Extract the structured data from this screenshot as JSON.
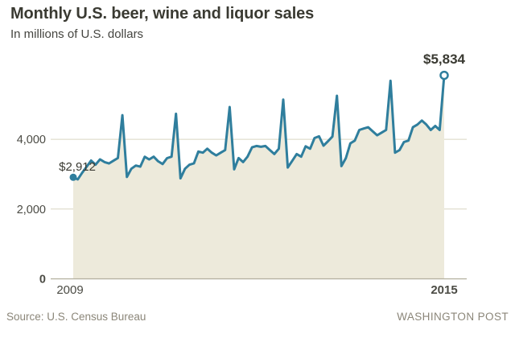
{
  "header": {
    "title": "Monthly U.S. beer, wine and liquor sales",
    "subtitle": "In millions of U.S. dollars"
  },
  "footer": {
    "source": "Source: U.S. Census Bureau",
    "brand": "WASHINGTON POST"
  },
  "colors": {
    "accent_line": "#2f7e9d",
    "area_fill": "#edeadb",
    "title_text": "#3a3a32",
    "subtitle_text": "#454540",
    "body_text": "#4b4b44",
    "grid_line": "#d9d5c2",
    "axis_line": "#b2ae9d",
    "muted_text": "#8b8679",
    "background": "#ffffff"
  },
  "chart_data": {
    "type": "area",
    "title": "Monthly U.S. beer, wine and liquor sales",
    "ylabel": "In millions of U.S. dollars",
    "x_range": [
      "2009-01",
      "2015-12"
    ],
    "x_tick_labels": [
      "2009",
      "2015"
    ],
    "y_ticks": [
      0,
      2000,
      4000
    ],
    "y_tick_labels": [
      "0",
      "2,000",
      "4,000"
    ],
    "ylim": [
      0,
      6000
    ],
    "grid": "horizontal",
    "legend": "none",
    "annotations": [
      {
        "label": "$2,912",
        "point": "first",
        "value": 2912,
        "marker": "filled-dot"
      },
      {
        "label": "$5,834",
        "point": "last",
        "value": 5834,
        "marker": "open-circle"
      }
    ],
    "series": [
      {
        "name": "Monthly sales",
        "values": [
          2912,
          2852,
          3040,
          3216,
          3392,
          3274,
          3426,
          3347,
          3308,
          3386,
          3462,
          4691,
          2920,
          3155,
          3247,
          3216,
          3499,
          3424,
          3501,
          3370,
          3292,
          3460,
          3502,
          4731,
          2882,
          3155,
          3270,
          3311,
          3650,
          3616,
          3731,
          3616,
          3539,
          3616,
          3692,
          4924,
          3139,
          3462,
          3347,
          3501,
          3770,
          3808,
          3785,
          3808,
          3692,
          3577,
          3731,
          5139,
          3192,
          3385,
          3577,
          3501,
          3800,
          3731,
          4037,
          4086,
          3817,
          3945,
          4079,
          5247,
          3231,
          3460,
          3884,
          3962,
          4268,
          4308,
          4346,
          4231,
          4115,
          4192,
          4268,
          5676,
          3616,
          3692,
          3922,
          3962,
          4346,
          4423,
          4538,
          4423,
          4268,
          4384,
          4268,
          5834
        ]
      }
    ]
  }
}
